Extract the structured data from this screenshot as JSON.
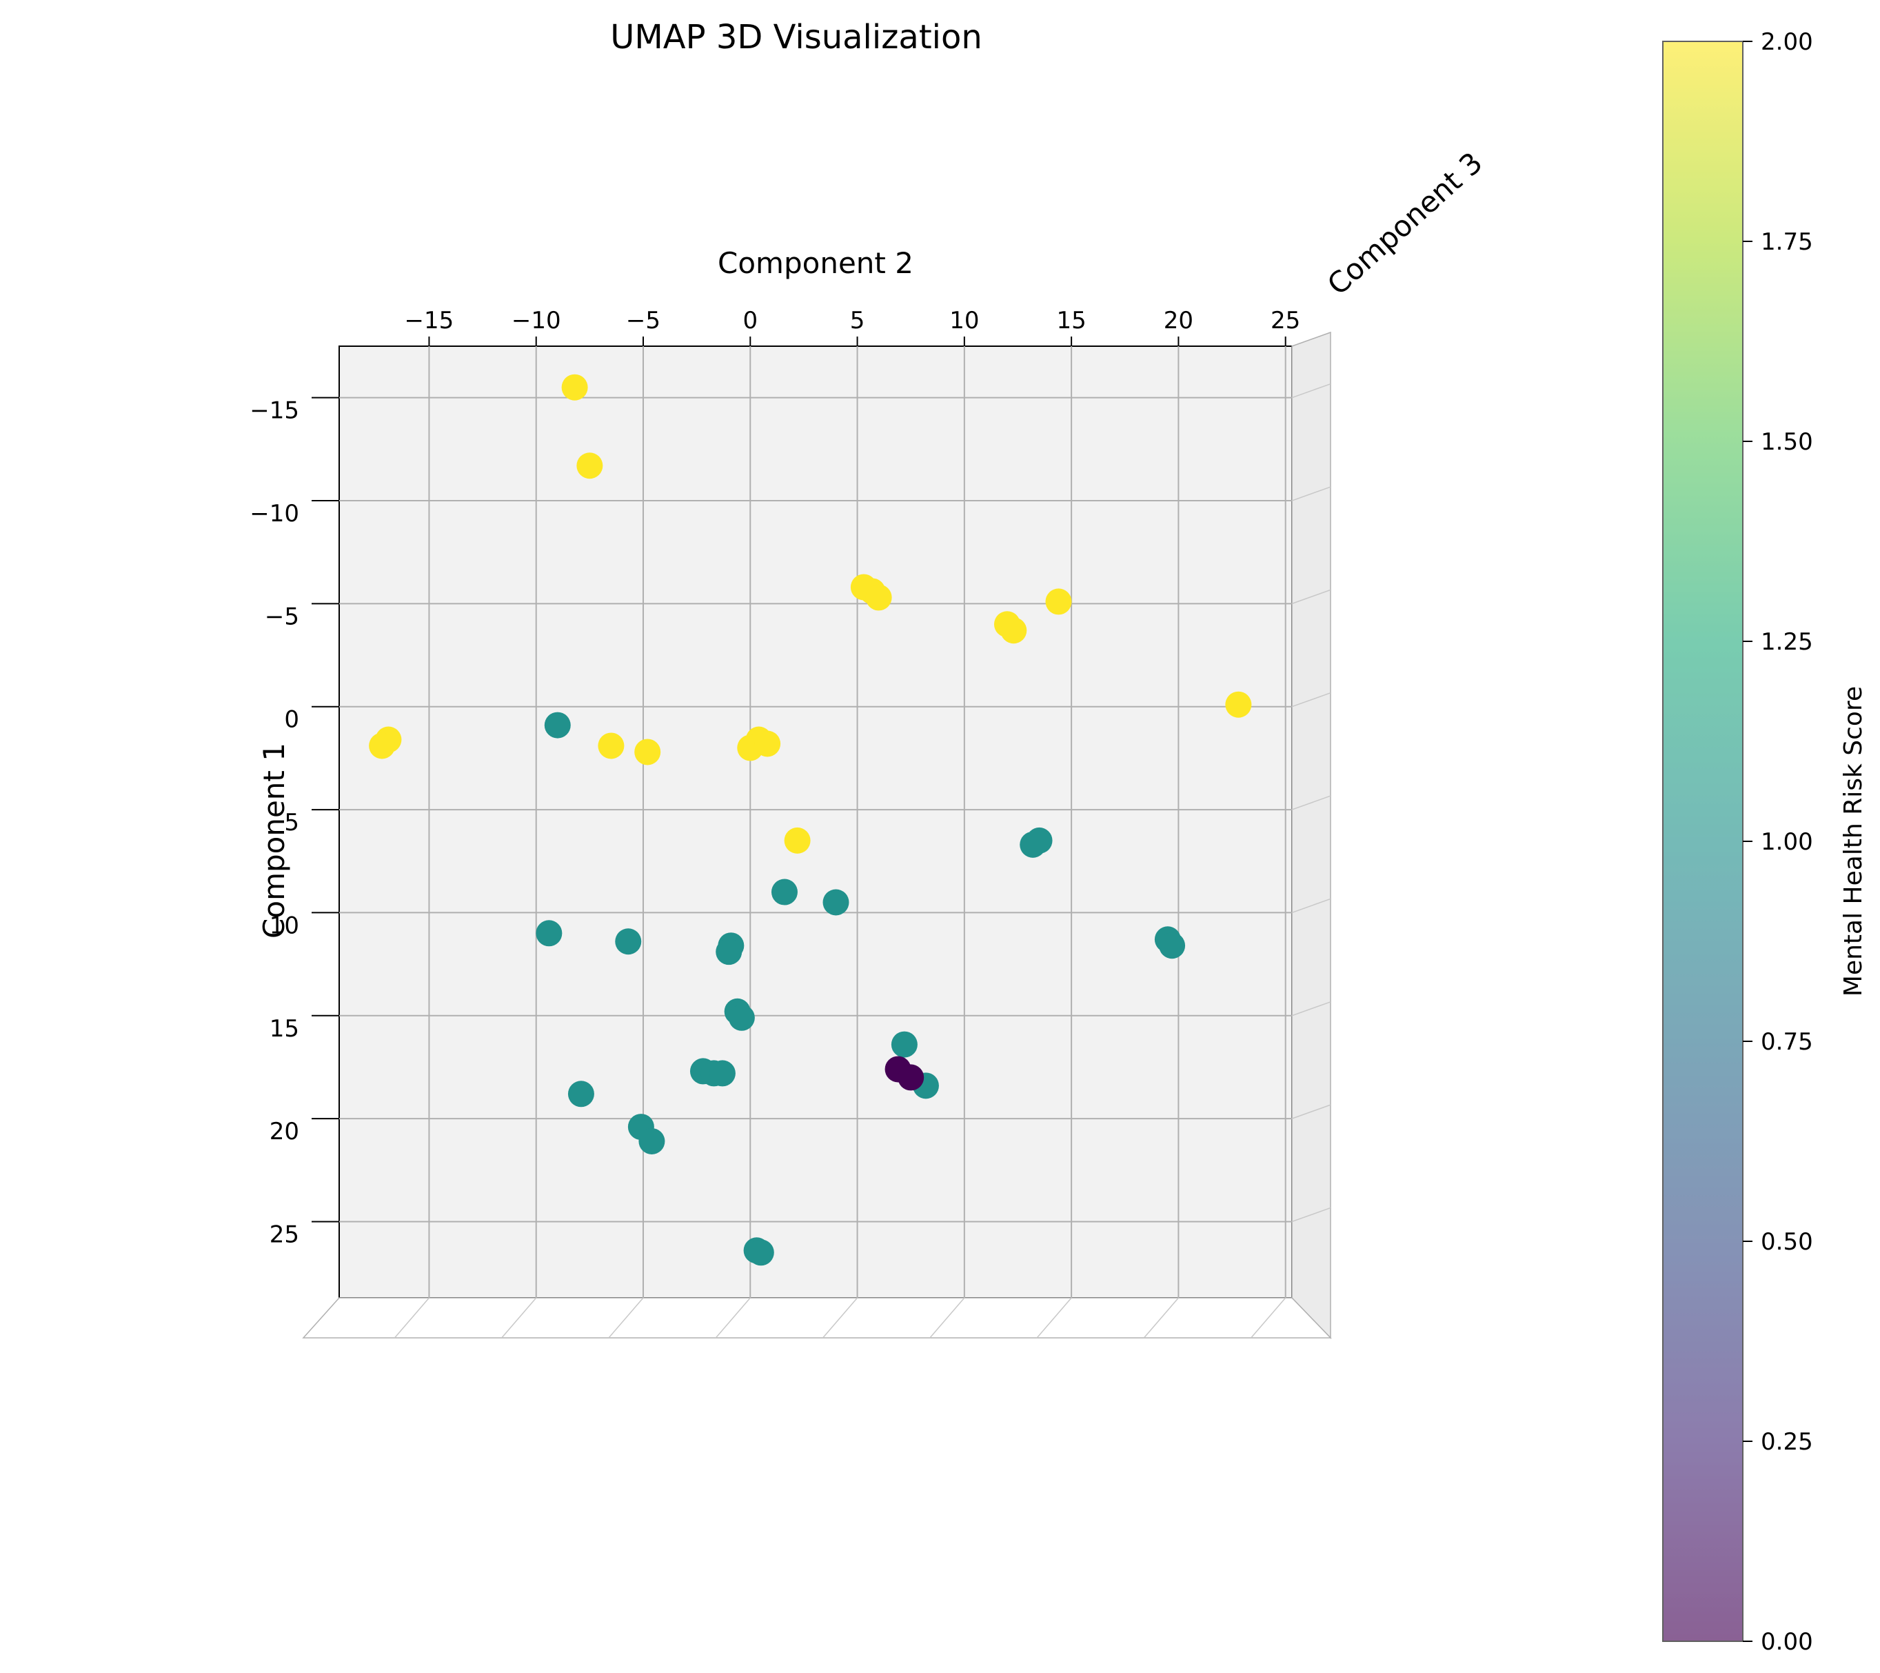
{
  "chart_data": {
    "type": "scatter",
    "projection": "3d",
    "title": "UMAP 3D Visualization",
    "xlabel": "Component 2",
    "ylabel": "Component 1",
    "zlabel": "Component 3",
    "colorbar_label": "Mental Health Risk Score",
    "colormap": "viridis",
    "color_range": [
      0,
      2
    ],
    "xlim": [
      -19.2,
      25.3
    ],
    "ylim": [
      -17.5,
      28.7
    ],
    "x_ticks": [
      -15,
      -10,
      -5,
      0,
      5,
      10,
      15,
      20,
      25
    ],
    "y_ticks": [
      -15,
      -10,
      -5,
      0,
      5,
      10,
      15,
      20,
      25
    ],
    "colorbar_ticks": [
      0.0,
      0.25,
      0.5,
      0.75,
      1.0,
      1.25,
      1.5,
      1.75,
      2.0
    ],
    "grid": true,
    "points": [
      {
        "comp2": -8.2,
        "comp1": -15.5,
        "risk": 2
      },
      {
        "comp2": -7.5,
        "comp1": -11.7,
        "risk": 2
      },
      {
        "comp2": 5.7,
        "comp1": -5.6,
        "risk": 2
      },
      {
        "comp2": 5.3,
        "comp1": -5.8,
        "risk": 2
      },
      {
        "comp2": 6.0,
        "comp1": -5.3,
        "risk": 2
      },
      {
        "comp2": 12.0,
        "comp1": -4.0,
        "risk": 2
      },
      {
        "comp2": 12.3,
        "comp1": -3.7,
        "risk": 2
      },
      {
        "comp2": 14.4,
        "comp1": -5.1,
        "risk": 2
      },
      {
        "comp2": 0.4,
        "comp1": 1.6,
        "risk": 2
      },
      {
        "comp2": 0.0,
        "comp1": 2.0,
        "risk": 2
      },
      {
        "comp2": 0.8,
        "comp1": 1.8,
        "risk": 2
      },
      {
        "comp2": -16.9,
        "comp1": 1.6,
        "risk": 2
      },
      {
        "comp2": -17.2,
        "comp1": 1.9,
        "risk": 2
      },
      {
        "comp2": 22.8,
        "comp1": -0.1,
        "risk": 2
      },
      {
        "comp2": -6.5,
        "comp1": 1.9,
        "risk": 2
      },
      {
        "comp2": -4.8,
        "comp1": 2.2,
        "risk": 2
      },
      {
        "comp2": 2.2,
        "comp1": 6.5,
        "risk": 2
      },
      {
        "comp2": -9.0,
        "comp1": 0.9,
        "risk": 1
      },
      {
        "comp2": 13.2,
        "comp1": 6.7,
        "risk": 1
      },
      {
        "comp2": 13.5,
        "comp1": 6.5,
        "risk": 1
      },
      {
        "comp2": 1.6,
        "comp1": 9.0,
        "risk": 1
      },
      {
        "comp2": 4.0,
        "comp1": 9.5,
        "risk": 1
      },
      {
        "comp2": -9.4,
        "comp1": 11.0,
        "risk": 1
      },
      {
        "comp2": -5.7,
        "comp1": 11.4,
        "risk": 1
      },
      {
        "comp2": -0.9,
        "comp1": 11.6,
        "risk": 1
      },
      {
        "comp2": -1.0,
        "comp1": 11.9,
        "risk": 1
      },
      {
        "comp2": 19.5,
        "comp1": 11.3,
        "risk": 1
      },
      {
        "comp2": 19.7,
        "comp1": 11.6,
        "risk": 1
      },
      {
        "comp2": -0.6,
        "comp1": 14.8,
        "risk": 1
      },
      {
        "comp2": -0.4,
        "comp1": 15.1,
        "risk": 1
      },
      {
        "comp2": 7.2,
        "comp1": 16.4,
        "risk": 1
      },
      {
        "comp2": -2.2,
        "comp1": 17.7,
        "risk": 1
      },
      {
        "comp2": -1.7,
        "comp1": 17.8,
        "risk": 1
      },
      {
        "comp2": -1.3,
        "comp1": 17.8,
        "risk": 1
      },
      {
        "comp2": 8.2,
        "comp1": 18.4,
        "risk": 1
      },
      {
        "comp2": -7.9,
        "comp1": 18.8,
        "risk": 1
      },
      {
        "comp2": -5.1,
        "comp1": 20.4,
        "risk": 1
      },
      {
        "comp2": -4.6,
        "comp1": 21.1,
        "risk": 1
      },
      {
        "comp2": 0.3,
        "comp1": 26.4,
        "risk": 1
      },
      {
        "comp2": 0.5,
        "comp1": 26.5,
        "risk": 1
      },
      {
        "comp2": 6.9,
        "comp1": 17.6,
        "risk": 0
      },
      {
        "comp2": 7.5,
        "comp1": 18.0,
        "risk": 0
      }
    ]
  }
}
